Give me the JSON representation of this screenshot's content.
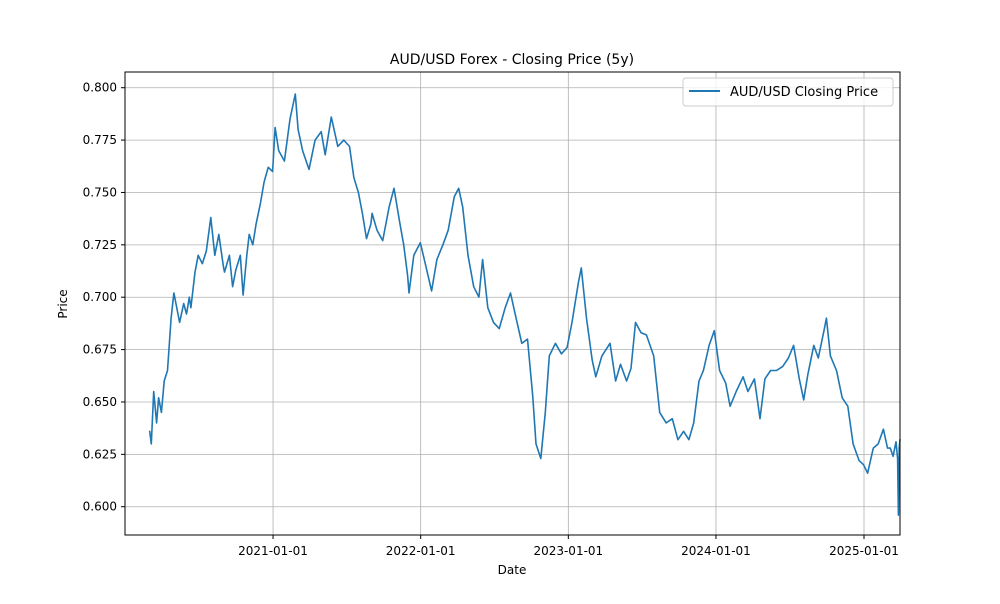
{
  "chart_data": {
    "type": "line",
    "title": "AUD/USD Forex - Closing Price (5y)",
    "xlabel": "Date",
    "ylabel": "Price",
    "xlim": [
      "2020-01-01",
      "2025-03-31"
    ],
    "ylim": [
      0.5865,
      0.8075
    ],
    "x_ticks": [
      "2021-01-01",
      "2022-01-01",
      "2023-01-01",
      "2024-01-01",
      "2025-01-01"
    ],
    "y_ticks": [
      0.6,
      0.625,
      0.65,
      0.675,
      0.7,
      0.725,
      0.75,
      0.775,
      0.8
    ],
    "grid": true,
    "legend_position": "top-right",
    "series": [
      {
        "name": "AUD/USD Closing Price",
        "color": "#1f77b4",
        "x": [
          "2020-03-02",
          "2020-03-06",
          "2020-03-12",
          "2020-03-19",
          "2020-03-24",
          "2020-03-31",
          "2020-04-07",
          "2020-04-15",
          "2020-04-24",
          "2020-05-01",
          "2020-05-15",
          "2020-05-25",
          "2020-06-01",
          "2020-06-08",
          "2020-06-12",
          "2020-06-22",
          "2020-06-30",
          "2020-07-10",
          "2020-07-20",
          "2020-07-31",
          "2020-08-10",
          "2020-08-20",
          "2020-08-31",
          "2020-09-03",
          "2020-09-15",
          "2020-09-23",
          "2020-10-01",
          "2020-10-12",
          "2020-10-19",
          "2020-10-28",
          "2020-11-03",
          "2020-11-12",
          "2020-11-20",
          "2020-12-01",
          "2020-12-10",
          "2020-12-20",
          "2020-12-31",
          "2021-01-06",
          "2021-01-15",
          "2021-01-29",
          "2021-02-12",
          "2021-02-25",
          "2021-03-04",
          "2021-03-15",
          "2021-03-31",
          "2021-04-15",
          "2021-04-30",
          "2021-05-10",
          "2021-05-25",
          "2021-06-10",
          "2021-06-25",
          "2021-07-09",
          "2021-07-20",
          "2021-07-31",
          "2021-08-10",
          "2021-08-20",
          "2021-08-31",
          "2021-09-03",
          "2021-09-15",
          "2021-09-29",
          "2021-10-15",
          "2021-10-27",
          "2021-11-10",
          "2021-11-20",
          "2021-11-30",
          "2021-12-03",
          "2021-12-15",
          "2021-12-31",
          "2022-01-10",
          "2022-01-28",
          "2022-02-10",
          "2022-02-25",
          "2022-03-10",
          "2022-03-25",
          "2022-04-05",
          "2022-04-15",
          "2022-04-28",
          "2022-05-12",
          "2022-05-25",
          "2022-06-03",
          "2022-06-16",
          "2022-06-30",
          "2022-07-14",
          "2022-07-29",
          "2022-08-11",
          "2022-08-25",
          "2022-09-08",
          "2022-09-22",
          "2022-10-05",
          "2022-10-13",
          "2022-10-25",
          "2022-11-05",
          "2022-11-15",
          "2022-11-30",
          "2022-12-15",
          "2022-12-29",
          "2023-01-10",
          "2023-01-26",
          "2023-02-02",
          "2023-02-15",
          "2023-03-01",
          "2023-03-10",
          "2023-03-25",
          "2023-04-14",
          "2023-04-28",
          "2023-05-10",
          "2023-05-25",
          "2023-06-05",
          "2023-06-16",
          "2023-06-30",
          "2023-07-13",
          "2023-07-31",
          "2023-08-15",
          "2023-08-31",
          "2023-09-15",
          "2023-09-29",
          "2023-10-13",
          "2023-10-26",
          "2023-11-07",
          "2023-11-20",
          "2023-12-01",
          "2023-12-15",
          "2023-12-28",
          "2024-01-10",
          "2024-01-25",
          "2024-02-05",
          "2024-02-20",
          "2024-03-08",
          "2024-03-20",
          "2024-04-05",
          "2024-04-19",
          "2024-05-01",
          "2024-05-15",
          "2024-05-30",
          "2024-06-14",
          "2024-06-28",
          "2024-07-11",
          "2024-07-25",
          "2024-08-05",
          "2024-08-15",
          "2024-08-30",
          "2024-09-10",
          "2024-09-25",
          "2024-09-30",
          "2024-10-10",
          "2024-10-25",
          "2024-11-08",
          "2024-11-22",
          "2024-12-05",
          "2024-12-20",
          "2024-12-31",
          "2025-01-10",
          "2025-01-24",
          "2025-02-05",
          "2025-02-18",
          "2025-02-28",
          "2025-03-07",
          "2025-03-14",
          "2025-03-21",
          "2025-03-25",
          "2025-03-27",
          "2025-03-29",
          "2025-03-31"
        ],
        "values": [
          0.636,
          0.63,
          0.655,
          0.64,
          0.652,
          0.645,
          0.66,
          0.665,
          0.69,
          0.702,
          0.688,
          0.697,
          0.692,
          0.7,
          0.695,
          0.712,
          0.72,
          0.716,
          0.722,
          0.738,
          0.72,
          0.73,
          0.715,
          0.712,
          0.72,
          0.705,
          0.713,
          0.72,
          0.701,
          0.72,
          0.73,
          0.725,
          0.735,
          0.745,
          0.755,
          0.762,
          0.76,
          0.781,
          0.77,
          0.765,
          0.785,
          0.797,
          0.78,
          0.77,
          0.761,
          0.775,
          0.779,
          0.768,
          0.786,
          0.772,
          0.775,
          0.772,
          0.757,
          0.75,
          0.74,
          0.728,
          0.735,
          0.74,
          0.732,
          0.727,
          0.743,
          0.752,
          0.736,
          0.725,
          0.71,
          0.702,
          0.72,
          0.726,
          0.718,
          0.703,
          0.718,
          0.725,
          0.732,
          0.748,
          0.752,
          0.743,
          0.72,
          0.705,
          0.7,
          0.718,
          0.695,
          0.688,
          0.685,
          0.695,
          0.702,
          0.69,
          0.678,
          0.68,
          0.653,
          0.63,
          0.623,
          0.645,
          0.672,
          0.678,
          0.673,
          0.676,
          0.688,
          0.707,
          0.714,
          0.69,
          0.67,
          0.662,
          0.672,
          0.678,
          0.66,
          0.668,
          0.66,
          0.666,
          0.688,
          0.683,
          0.682,
          0.672,
          0.645,
          0.64,
          0.642,
          0.632,
          0.636,
          0.632,
          0.64,
          0.66,
          0.665,
          0.677,
          0.684,
          0.665,
          0.659,
          0.648,
          0.655,
          0.662,
          0.655,
          0.661,
          0.642,
          0.661,
          0.665,
          0.665,
          0.667,
          0.671,
          0.677,
          0.661,
          0.651,
          0.663,
          0.677,
          0.671,
          0.685,
          0.69,
          0.672,
          0.665,
          0.652,
          0.648,
          0.63,
          0.622,
          0.62,
          0.616,
          0.628,
          0.63,
          0.637,
          0.628,
          0.628,
          0.624,
          0.631,
          0.623,
          0.596,
          0.628,
          0.632
        ]
      }
    ]
  }
}
